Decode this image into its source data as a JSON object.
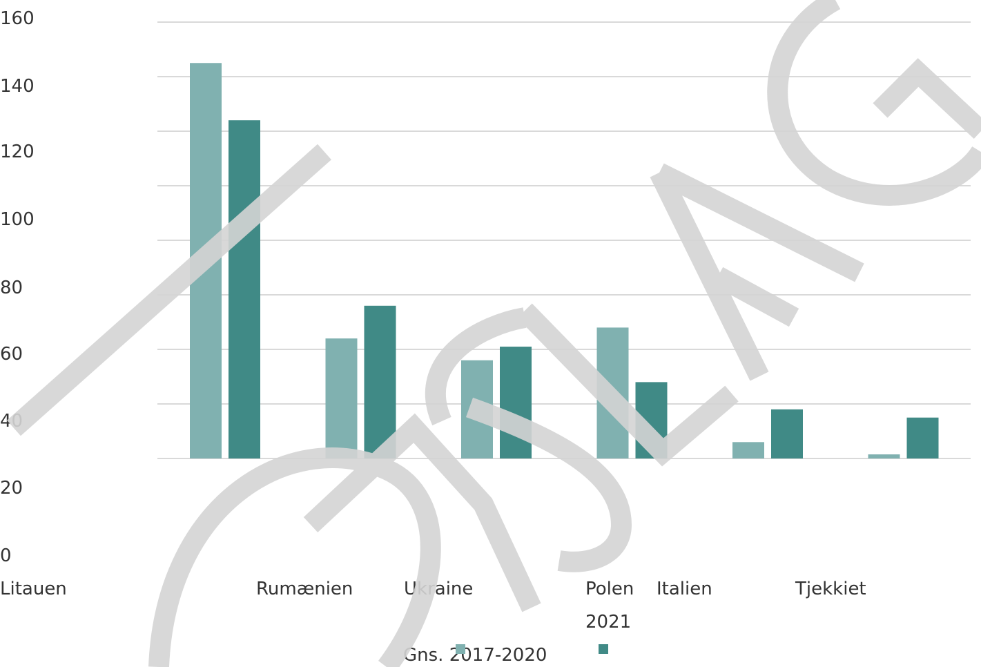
{
  "chart_data": {
    "type": "bar",
    "categories": [
      "Litauen",
      "Rumænien",
      "Ukraine",
      "Polen",
      "Italien",
      "Tjekkiet"
    ],
    "series": [
      {
        "name": "Gns. 2017-2020",
        "values": [
          145,
          44,
          36,
          48,
          6,
          1.5
        ],
        "color": "#80b1b0"
      },
      {
        "name": "2021",
        "values": [
          124,
          56,
          41,
          28,
          18,
          15
        ],
        "color": "#408a86"
      }
    ],
    "y_tick_labels": [
      "160",
      "140",
      "120",
      "100",
      "80",
      "60",
      "40",
      "20",
      "0"
    ],
    "gridlines": 9,
    "ylim": [
      0,
      160
    ],
    "grid": true,
    "legend_position": "bottom",
    "watermark_text": "KORSLAG"
  }
}
